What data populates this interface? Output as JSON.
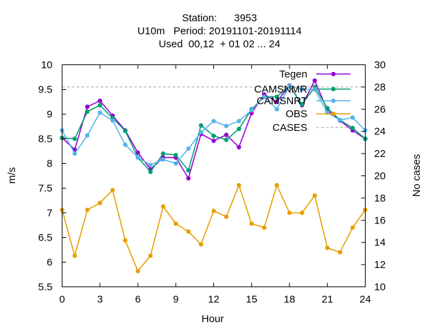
{
  "title_lines": [
    "Station:      3953",
    "U10m   Period: 20191101-20191114",
    "Used  00,12  + 01 02 ... 24"
  ],
  "chart_data": {
    "type": "line",
    "xlabel": "Hour",
    "ylabel": "m/s",
    "y2label": "No cases",
    "xlim": [
      0,
      24
    ],
    "ylim": [
      5.5,
      10
    ],
    "y2lim": [
      10,
      30
    ],
    "x_ticks": [
      "0",
      "3",
      "6",
      "9",
      "12",
      "15",
      "18",
      "21",
      "24"
    ],
    "y_ticks": [
      "5.5",
      "6",
      "6.5",
      "7",
      "7.5",
      "8",
      "8.5",
      "9",
      "9.5",
      "10"
    ],
    "y2_ticks": [
      "10",
      "12",
      "14",
      "16",
      "18",
      "20",
      "22",
      "24",
      "26",
      "28",
      "30"
    ],
    "grid": false,
    "legend_position": "top-right",
    "x": [
      0,
      1,
      2,
      3,
      4,
      5,
      6,
      7,
      8,
      9,
      10,
      11,
      12,
      13,
      14,
      15,
      16,
      17,
      18,
      19,
      20,
      21,
      22,
      23,
      24
    ],
    "series": [
      {
        "name": "Tegen",
        "color": "#9400d3",
        "marker": "circle",
        "axis": "y",
        "values": [
          8.52,
          8.28,
          9.15,
          9.27,
          8.97,
          8.67,
          8.22,
          7.88,
          8.12,
          8.12,
          7.7,
          8.6,
          8.46,
          8.58,
          8.33,
          9.02,
          9.4,
          9.25,
          9.58,
          9.18,
          9.68,
          9.08,
          8.87,
          8.67,
          8.5
        ]
      },
      {
        "name": "CAMSNMR",
        "color": "#009e73",
        "marker": "circle",
        "axis": "y",
        "values": [
          8.52,
          8.5,
          9.05,
          9.18,
          8.92,
          8.66,
          8.12,
          7.83,
          8.2,
          8.17,
          7.86,
          8.77,
          8.56,
          8.48,
          8.7,
          9.1,
          9.35,
          9.35,
          9.57,
          9.2,
          9.55,
          9.12,
          8.88,
          8.72,
          8.5
        ]
      },
      {
        "name": "CAMSNRT",
        "color": "#56b4e9",
        "marker": "circle",
        "axis": "y",
        "values": [
          8.67,
          8.2,
          8.57,
          9.03,
          8.87,
          8.38,
          8.12,
          7.97,
          8.08,
          8.0,
          8.3,
          8.63,
          8.86,
          8.76,
          8.86,
          9.08,
          9.35,
          9.1,
          9.57,
          9.5,
          9.5,
          9.03,
          8.88,
          8.93,
          8.67
        ]
      },
      {
        "name": "OBS",
        "color": "#e69f00",
        "marker": "circle",
        "axis": "y",
        "values": [
          7.06,
          6.13,
          7.06,
          7.2,
          7.46,
          6.44,
          5.82,
          6.13,
          7.13,
          6.78,
          6.62,
          6.36,
          7.04,
          6.92,
          7.56,
          6.78,
          6.7,
          7.56,
          7.0,
          7.0,
          7.35,
          6.29,
          6.2,
          6.7,
          7.06
        ]
      },
      {
        "name": "CASES",
        "color": "#a0a0a0",
        "dashed": true,
        "axis": "y2",
        "values": [
          28,
          28,
          28,
          28,
          28,
          28,
          28,
          28,
          28,
          28,
          28,
          28,
          28,
          28,
          28,
          28,
          28,
          28,
          28,
          28,
          28,
          28,
          28,
          28,
          28
        ]
      }
    ]
  }
}
